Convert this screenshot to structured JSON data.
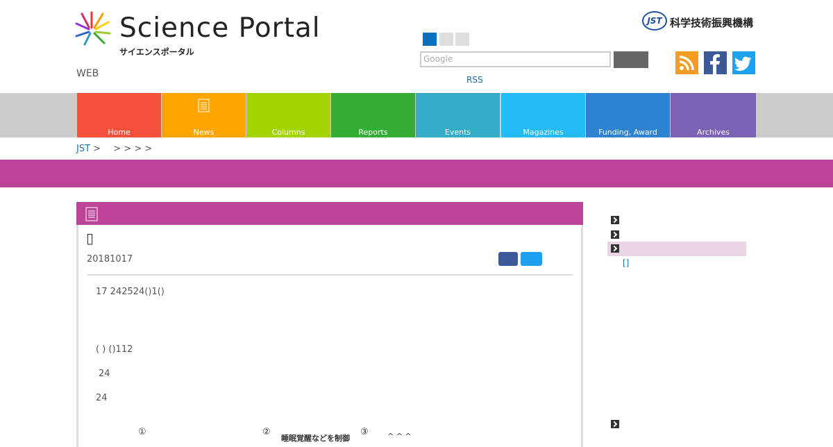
{
  "header": {
    "logo_title": "Science Portal",
    "logo_subtitle": "サイエンスポータル",
    "tagline": "WEB",
    "org_mark": "JST",
    "org_name": "科学技術振興機構",
    "search_placeholder": "Google",
    "rss": "RSS"
  },
  "nav": [
    "Home",
    "News",
    "Columns",
    "Reports",
    "Events",
    "Magazines",
    "Funding, Award",
    "Archives"
  ],
  "breadcrumb": [
    "JST",
    ">",
    ">",
    ">",
    ">",
    ">"
  ],
  "article": {
    "title": "▯",
    "date": "20181017",
    "paragraphs": [
      "17 242524()1()",
      "( ) ()112",
      "24",
      "24"
    ],
    "figure_row": [
      "①",
      "②",
      "睡眠覚醒などを制御",
      "③",
      "^ ^ ^"
    ]
  },
  "sidebar": {
    "sub_link": "[]"
  }
}
